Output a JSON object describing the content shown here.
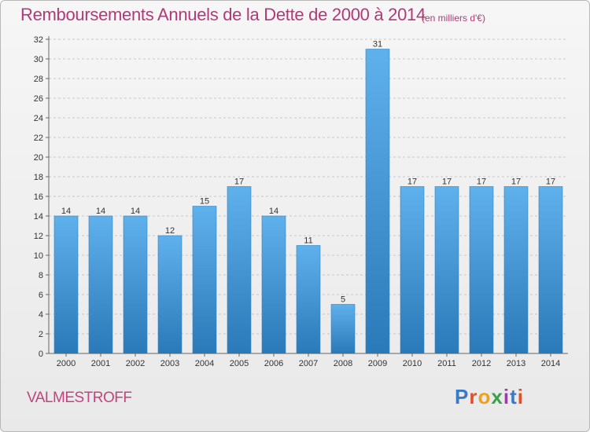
{
  "header": {
    "title": "Remboursements Annuels de la Dette de 2000 à 2014",
    "subtitle": "(en milliers d'€)"
  },
  "footer": {
    "location": "VALMESTROFF",
    "logo_text": "Proxiti"
  },
  "colors": {
    "title": "#b03a78",
    "bar_top": "#5fb1ec",
    "bar_bottom": "#2a79b8",
    "logo_letters": [
      "#3a78c8",
      "#e2502a",
      "#f0a020",
      "#3aa04a",
      "#9a3fa0",
      "#3a78c8",
      "#e2502a"
    ]
  },
  "chart_data": {
    "type": "bar",
    "title": "Remboursements Annuels de la Dette de 2000 à 2014",
    "subtitle": "(en milliers d'€)",
    "xlabel": "",
    "ylabel": "",
    "categories": [
      "2000",
      "2001",
      "2002",
      "2003",
      "2004",
      "2005",
      "2006",
      "2007",
      "2008",
      "2009",
      "2010",
      "2011",
      "2012",
      "2013",
      "2014"
    ],
    "values": [
      14,
      14,
      14,
      12,
      15,
      17,
      14,
      11,
      5,
      31,
      17,
      17,
      17,
      17,
      17
    ],
    "ylim": [
      0,
      32
    ],
    "yticks": [
      0,
      2,
      4,
      6,
      8,
      10,
      12,
      14,
      16,
      18,
      20,
      22,
      24,
      26,
      28,
      30,
      32
    ],
    "grid": "horizontal dashed",
    "legend": "none"
  }
}
